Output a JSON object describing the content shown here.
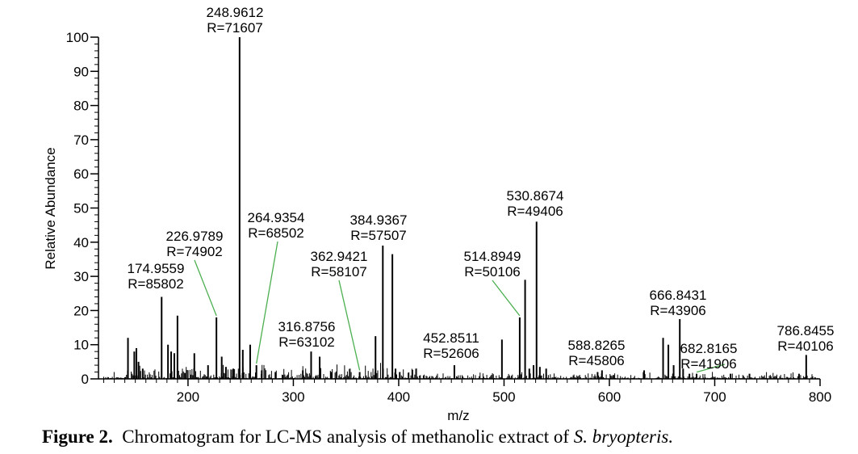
{
  "caption": {
    "label": "Figure 2.",
    "text": "Chromatogram for LC-MS analysis of methanolic extract of ",
    "species": "S. bryopteris."
  },
  "chart_data": {
    "type": "bar",
    "title": "",
    "xlabel": "m/z",
    "ylabel": "Relative Abundance",
    "xlim": [
      115,
      800
    ],
    "ylim": [
      0,
      100
    ],
    "x_ticks": [
      200,
      300,
      400,
      500,
      600,
      700,
      800
    ],
    "y_ticks": [
      0,
      10,
      20,
      30,
      40,
      50,
      60,
      70,
      80,
      90,
      100
    ],
    "grid": false,
    "labeled_peaks": [
      {
        "mz": 174.9559,
        "abundance": 24,
        "label": "174.9559",
        "resolution": "R=85802",
        "leader": false
      },
      {
        "mz": 226.9789,
        "abundance": 18,
        "label": "226.9789",
        "resolution": "R=74902",
        "leader": true
      },
      {
        "mz": 248.9612,
        "abundance": 100,
        "label": "248.9612",
        "resolution": "R=71607",
        "leader": false
      },
      {
        "mz": 264.9354,
        "abundance": 4,
        "label": "264.9354",
        "resolution": "R=68502",
        "leader": true
      },
      {
        "mz": 316.8756,
        "abundance": 8,
        "label": "316.8756",
        "resolution": "R=63102",
        "leader": false
      },
      {
        "mz": 362.9421,
        "abundance": 2,
        "label": "362.9421",
        "resolution": "R=58107",
        "leader": true
      },
      {
        "mz": 384.9367,
        "abundance": 39,
        "label": "384.9367",
        "resolution": "R=57507",
        "leader": false
      },
      {
        "mz": 452.8511,
        "abundance": 4,
        "label": "452.8511",
        "resolution": "R=52606",
        "leader": false
      },
      {
        "mz": 514.8949,
        "abundance": 18,
        "label": "514.8949",
        "resolution": "R=50106",
        "leader": true
      },
      {
        "mz": 530.8674,
        "abundance": 46,
        "label": "530.8674",
        "resolution": "R=49406",
        "leader": false
      },
      {
        "mz": 588.8265,
        "abundance": 2,
        "label": "588.8265",
        "resolution": "R=45806",
        "leader": false
      },
      {
        "mz": 666.8431,
        "abundance": 17.5,
        "label": "666.8431",
        "resolution": "R=43906",
        "leader": false
      },
      {
        "mz": 682.8165,
        "abundance": 1.5,
        "label": "682.8165",
        "resolution": "R=41906",
        "leader": true
      },
      {
        "mz": 786.8455,
        "abundance": 7,
        "label": "786.8455",
        "resolution": "R=40106",
        "leader": false
      }
    ],
    "unlabeled_peaks": [
      {
        "mz": 143,
        "abundance": 12
      },
      {
        "mz": 149,
        "abundance": 8
      },
      {
        "mz": 151,
        "abundance": 9
      },
      {
        "mz": 153,
        "abundance": 5
      },
      {
        "mz": 157,
        "abundance": 3
      },
      {
        "mz": 181,
        "abundance": 10
      },
      {
        "mz": 184,
        "abundance": 8
      },
      {
        "mz": 187,
        "abundance": 7.5
      },
      {
        "mz": 190,
        "abundance": 18.5
      },
      {
        "mz": 206,
        "abundance": 7.5
      },
      {
        "mz": 219,
        "abundance": 4
      },
      {
        "mz": 232,
        "abundance": 6.5
      },
      {
        "mz": 236,
        "abundance": 3.5
      },
      {
        "mz": 243,
        "abundance": 3
      },
      {
        "mz": 252,
        "abundance": 8.5
      },
      {
        "mz": 259,
        "abundance": 10
      },
      {
        "mz": 270,
        "abundance": 2.5
      },
      {
        "mz": 283,
        "abundance": 2
      },
      {
        "mz": 309,
        "abundance": 2.5
      },
      {
        "mz": 325,
        "abundance": 6.5
      },
      {
        "mz": 336,
        "abundance": 2
      },
      {
        "mz": 378,
        "abundance": 12.5
      },
      {
        "mz": 394,
        "abundance": 36.5
      },
      {
        "mz": 397,
        "abundance": 3
      },
      {
        "mz": 401,
        "abundance": 2
      },
      {
        "mz": 498,
        "abundance": 11.5
      },
      {
        "mz": 520,
        "abundance": 29
      },
      {
        "mz": 524,
        "abundance": 3
      },
      {
        "mz": 528,
        "abundance": 4
      },
      {
        "mz": 534,
        "abundance": 3.5
      },
      {
        "mz": 540,
        "abundance": 3
      },
      {
        "mz": 593,
        "abundance": 2.5
      },
      {
        "mz": 633,
        "abundance": 2.5
      },
      {
        "mz": 651,
        "abundance": 12
      },
      {
        "mz": 656,
        "abundance": 10
      },
      {
        "mz": 661,
        "abundance": 4
      },
      {
        "mz": 670,
        "abundance": 3
      },
      {
        "mz": 676,
        "abundance": 1.5
      },
      {
        "mz": 715,
        "abundance": 1.5
      },
      {
        "mz": 733,
        "abundance": 1.5
      },
      {
        "mz": 780,
        "abundance": 1.5
      }
    ],
    "colors": {
      "bars": "#000000",
      "leaders": "#4caf50",
      "axes": "#000000"
    }
  }
}
